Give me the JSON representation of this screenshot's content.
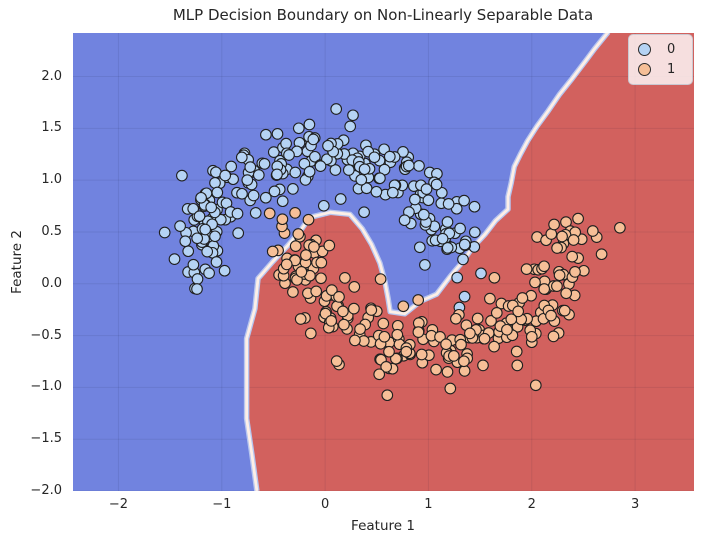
{
  "chart_data": {
    "type": "scatter",
    "title": "MLP Decision Boundary on Non-Linearly Separable Data",
    "xlabel": "Feature 1",
    "ylabel": "Feature 2",
    "xlim": [
      -2.44,
      3.57
    ],
    "ylim": [
      -2.0,
      2.42
    ],
    "grid": true,
    "x_ticks": [
      {
        "v": -2,
        "label": "−2"
      },
      {
        "v": -1,
        "label": "−1"
      },
      {
        "v": 0,
        "label": "0"
      },
      {
        "v": 1,
        "label": "1"
      },
      {
        "v": 2,
        "label": "2"
      },
      {
        "v": 3,
        "label": "3"
      }
    ],
    "y_ticks": [
      {
        "v": 2.0,
        "label": "2.0"
      },
      {
        "v": 1.5,
        "label": "1.5"
      },
      {
        "v": 1.0,
        "label": "1.0"
      },
      {
        "v": 0.5,
        "label": "0.5"
      },
      {
        "v": 0.0,
        "label": "0.0"
      },
      {
        "v": -0.5,
        "label": "−0.5"
      },
      {
        "v": -1.0,
        "label": "−1.0"
      },
      {
        "v": -1.5,
        "label": "−1.5"
      },
      {
        "v": -2.0,
        "label": "−2.0"
      }
    ],
    "legend": {
      "position": "upper right",
      "entries": [
        {
          "label": "0",
          "marker_color": "#b5d3f4"
        },
        {
          "label": "1",
          "marker_color": "#f6bf97"
        }
      ]
    },
    "decision_regions": {
      "class0_color": "#7183df",
      "class1_color": "#d2615e",
      "boundary_stripe_outer_color": "#b7c6f0",
      "boundary_stripe_inner_color": "#fdefe7",
      "boundary_polyline": [
        [
          2.74,
          2.43
        ],
        [
          2.61,
          2.27
        ],
        [
          2.52,
          2.15
        ],
        [
          2.39,
          1.98
        ],
        [
          2.27,
          1.83
        ],
        [
          2.16,
          1.67
        ],
        [
          2.05,
          1.52
        ],
        [
          1.96,
          1.38
        ],
        [
          1.89,
          1.25
        ],
        [
          1.83,
          1.13
        ],
        [
          1.8,
          0.97
        ],
        [
          1.77,
          0.84
        ],
        [
          1.77,
          0.72
        ],
        [
          1.65,
          0.61
        ],
        [
          1.55,
          0.48
        ],
        [
          1.42,
          0.34
        ],
        [
          1.33,
          0.21
        ],
        [
          1.26,
          0.13
        ],
        [
          1.21,
          0.07
        ],
        [
          1.08,
          -0.1
        ],
        [
          0.92,
          -0.17
        ],
        [
          0.77,
          -0.29
        ],
        [
          0.63,
          -0.27
        ],
        [
          0.61,
          -0.14
        ],
        [
          0.58,
          0.02
        ],
        [
          0.53,
          0.2
        ],
        [
          0.45,
          0.38
        ],
        [
          0.36,
          0.53
        ],
        [
          0.24,
          0.67
        ],
        [
          0.05,
          0.69
        ],
        [
          -0.15,
          0.64
        ],
        [
          -0.24,
          0.51
        ],
        [
          -0.36,
          0.37
        ],
        [
          -0.51,
          0.21
        ],
        [
          -0.65,
          0.05
        ],
        [
          -0.68,
          -0.24
        ],
        [
          -0.76,
          -0.53
        ],
        [
          -0.76,
          -1.3
        ],
        [
          -0.71,
          -1.64
        ],
        [
          -0.66,
          -2.0
        ]
      ]
    },
    "series": [
      {
        "name": "0",
        "n": 250,
        "marker_fill": "#b5d3f4",
        "marker_edge": "#1f1f1f",
        "generator": {
          "type": "moon-arc",
          "cx": -0.05,
          "cy": 0.15,
          "rx": 1.25,
          "ry": 1.1,
          "t_start_deg": 0,
          "t_end_deg": 180,
          "noise_sigma": 0.17,
          "seed": 20
        }
      },
      {
        "name": "1",
        "n": 250,
        "marker_fill": "#f6bf97",
        "marker_edge": "#1f1f1f",
        "generator": {
          "type": "moon-arc",
          "cx": 1.05,
          "cy": 0.5,
          "rx": 1.3,
          "ry": 1.1,
          "t_start_deg": 180,
          "t_end_deg": 360,
          "noise_sigma": 0.17,
          "seed": 99
        }
      }
    ]
  }
}
